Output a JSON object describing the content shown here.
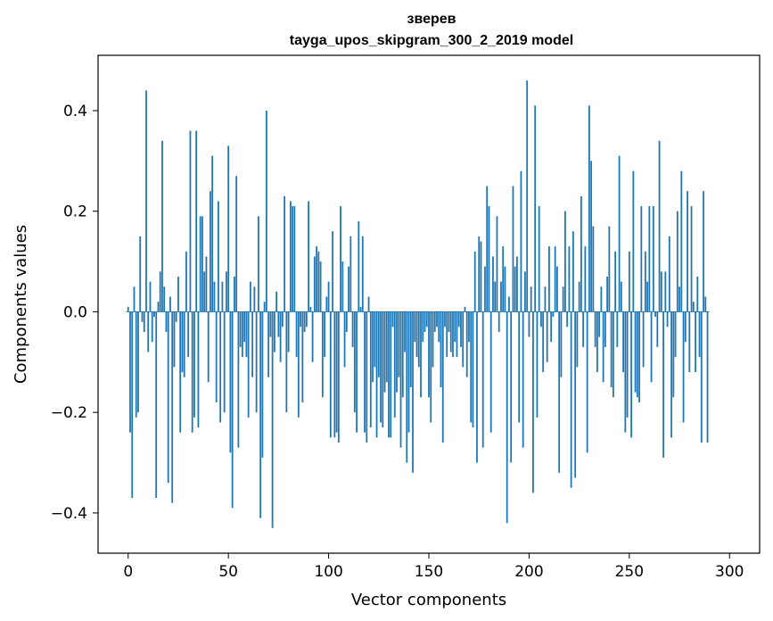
{
  "chart_data": {
    "type": "bar",
    "title": "зверев",
    "subtitle": "tayga_upos_skipgram_300_2_2019 model",
    "xlabel": "Vector components",
    "ylabel": "Components values",
    "xlim": [
      -15,
      315
    ],
    "ylim": [
      -0.48,
      0.51
    ],
    "x_ticks": [
      0,
      50,
      100,
      150,
      200,
      250,
      300
    ],
    "x_tick_labels": [
      "0",
      "50",
      "100",
      "150",
      "200",
      "250",
      "300"
    ],
    "y_ticks": [
      -0.4,
      -0.2,
      0.0,
      0.2,
      0.4
    ],
    "y_tick_labels": [
      "−0.4",
      "−0.2",
      "0.0",
      "0.2",
      "0.4"
    ],
    "bar_color": "#1f77b4",
    "grid": false,
    "legend": false,
    "values": [
      0.01,
      -0.24,
      -0.37,
      0.05,
      -0.21,
      -0.2,
      0.15,
      -0.02,
      -0.04,
      0.44,
      -0.08,
      0.06,
      -0.06,
      -0.01,
      -0.37,
      0.02,
      0.08,
      0.34,
      0.05,
      -0.04,
      -0.34,
      0.03,
      -0.38,
      -0.11,
      -0.02,
      0.07,
      -0.24,
      -0.12,
      -0.13,
      0.12,
      -0.09,
      0.36,
      -0.24,
      -0.21,
      0.36,
      -0.23,
      0.19,
      0.19,
      0.08,
      0.11,
      -0.14,
      0.24,
      0.31,
      0.06,
      -0.18,
      0.22,
      -0.22,
      0.06,
      -0.2,
      0.08,
      0.33,
      -0.28,
      -0.39,
      0.07,
      0.27,
      -0.27,
      -0.07,
      -0.09,
      -0.06,
      -0.09,
      -0.21,
      0.06,
      -0.13,
      0.05,
      -0.2,
      0.19,
      -0.41,
      -0.29,
      0.02,
      0.4,
      -0.13,
      -0.05,
      -0.43,
      -0.08,
      0.04,
      -0.05,
      -0.1,
      -0.03,
      0.23,
      -0.2,
      -0.08,
      0.22,
      0.21,
      0.21,
      -0.09,
      -0.21,
      -0.03,
      -0.18,
      -0.04,
      -0.03,
      0.22,
      0.01,
      -0.1,
      0.11,
      0.13,
      0.12,
      0.1,
      -0.17,
      -0.09,
      0.03,
      0.06,
      -0.25,
      0.16,
      -0.25,
      -0.24,
      -0.26,
      0.21,
      0.1,
      -0.11,
      -0.04,
      0.09,
      0.15,
      -0.07,
      -0.2,
      -0.24,
      0.18,
      0.01,
      0.15,
      -0.24,
      -0.26,
      0.03,
      -0.23,
      -0.14,
      -0.11,
      -0.25,
      -0.13,
      -0.22,
      -0.23,
      -0.16,
      -0.14,
      -0.25,
      -0.25,
      -0.03,
      -0.21,
      -0.16,
      -0.13,
      -0.27,
      -0.17,
      -0.08,
      -0.3,
      -0.24,
      -0.15,
      -0.32,
      -0.06,
      -0.09,
      -0.11,
      -0.17,
      -0.06,
      -0.04,
      -0.03,
      -0.17,
      -0.22,
      -0.11,
      -0.04,
      -0.03,
      -0.06,
      -0.15,
      -0.26,
      -0.03,
      -0.09,
      -0.04,
      -0.08,
      -0.09,
      -0.06,
      -0.09,
      -0.03,
      -0.07,
      -0.11,
      0.01,
      -0.13,
      -0.06,
      -0.22,
      -0.23,
      0.12,
      -0.3,
      0.15,
      0.14,
      -0.27,
      0.09,
      0.25,
      0.21,
      -0.24,
      0.11,
      0.06,
      0.19,
      -0.04,
      0.06,
      0.13,
      0.09,
      -0.42,
      0.03,
      -0.3,
      0.25,
      0.09,
      0.11,
      -0.22,
      0.28,
      -0.27,
      0.08,
      0.46,
      -0.05,
      0.05,
      -0.36,
      0.41,
      -0.21,
      0.21,
      -0.03,
      -0.12,
      0.05,
      -0.1,
      0.13,
      -0.06,
      -0.01,
      0.13,
      0.09,
      -0.32,
      -0.13,
      0.05,
      0.2,
      -0.03,
      0.13,
      -0.35,
      0.16,
      -0.33,
      -0.11,
      0.06,
      0.23,
      -0.07,
      0.13,
      -0.28,
      0.41,
      0.3,
      0.17,
      -0.07,
      -0.12,
      -0.05,
      0.05,
      -0.14,
      -0.07,
      0.07,
      0.17,
      -0.15,
      -0.17,
      0.12,
      -0.07,
      0.31,
      0.06,
      -0.12,
      -0.24,
      -0.21,
      0.12,
      -0.25,
      0.28,
      -0.16,
      -0.17,
      -0.18,
      0.21,
      -0.11,
      0.12,
      0.06,
      0.21,
      -0.14,
      0.21,
      -0.01,
      -0.07,
      0.34,
      0.08,
      -0.29,
      0.08,
      -0.03,
      0.15,
      -0.25,
      -0.17,
      -0.09,
      0.2,
      0.05,
      0.28,
      -0.22,
      -0.06,
      0.24,
      -0.12,
      0.21,
      0.02,
      -0.12,
      0.07,
      -0.09,
      -0.26,
      0.24,
      0.03,
      -0.26
    ]
  }
}
